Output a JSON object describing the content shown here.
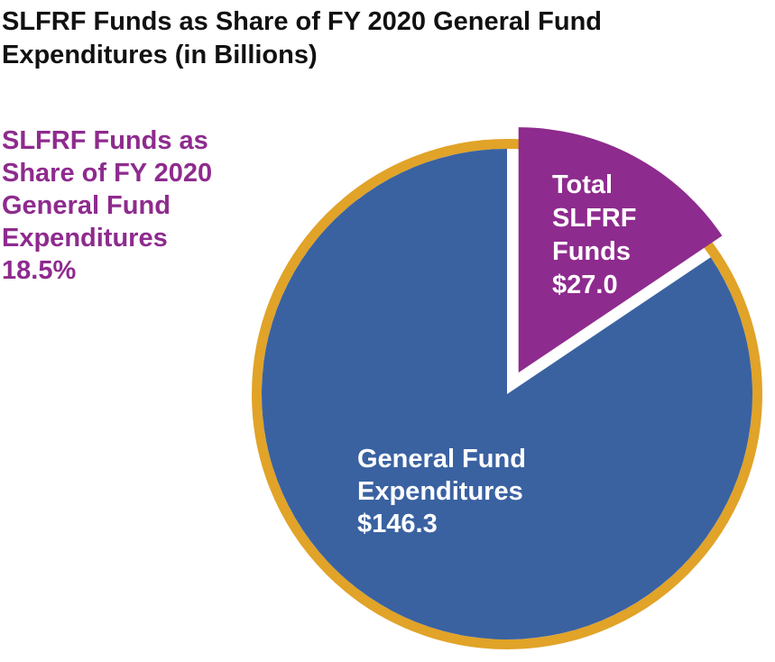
{
  "title_lines": [
    "SLFRF Funds as Share of FY 2020 General Fund",
    "Expenditures (in Billions)"
  ],
  "callout": {
    "lines": [
      "SLFRF Funds as",
      "Share of FY 2020",
      "General Fund",
      "Expenditures"
    ],
    "value": "18.5%"
  },
  "colors": {
    "general_fund": "#3A62A1",
    "slfrf": "#8E2B8E",
    "ring": "#E1A328",
    "callout_text": "#8E2B8E",
    "slice_text": "#FFFFFF"
  },
  "chart_data": {
    "type": "pie",
    "title": "SLFRF Funds as Share of FY 2020 General Fund Expenditures (in Billions)",
    "slices": [
      {
        "name": "Total SLFRF Funds",
        "value": 27.0,
        "label_lines": [
          "Total",
          "SLFRF",
          "Funds",
          "$27.0"
        ],
        "exploded": true
      },
      {
        "name": "General Fund Expenditures",
        "value": 146.3,
        "label_lines": [
          "General Fund",
          "Expenditures",
          "$146.3"
        ],
        "exploded": false
      }
    ],
    "share_percent": 18.5
  }
}
